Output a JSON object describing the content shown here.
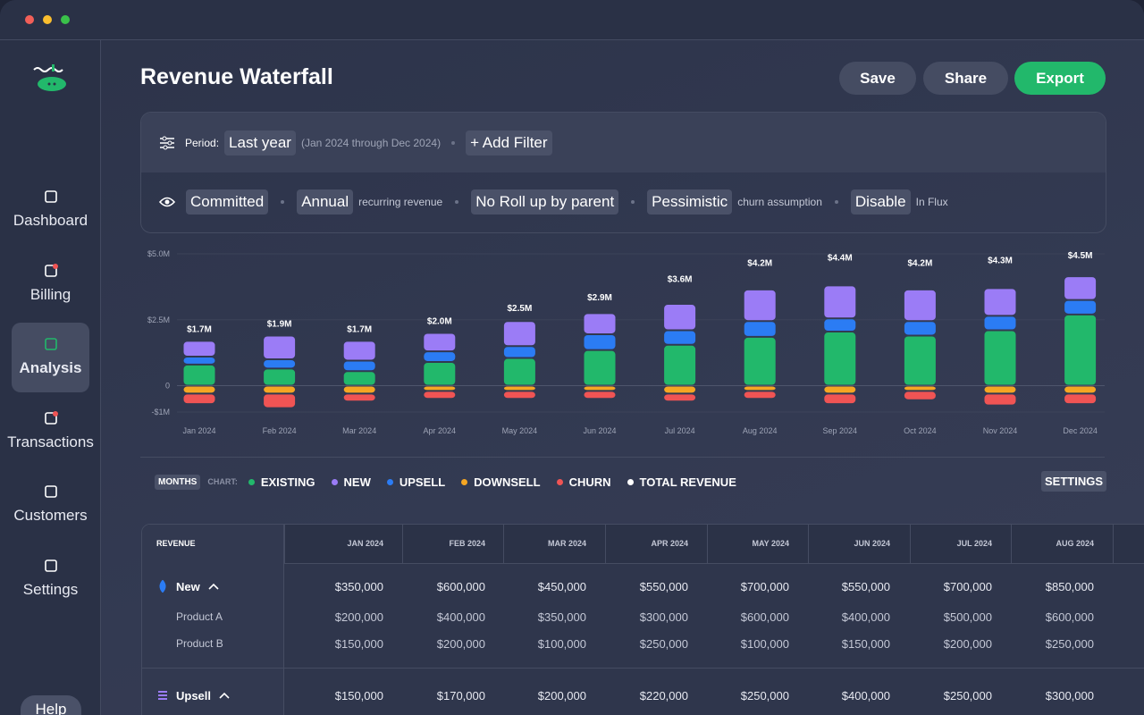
{
  "sidebar": {
    "items": [
      {
        "label": "Dashboard"
      },
      {
        "label": "Billing"
      },
      {
        "label": "Analysis"
      },
      {
        "label": "Transactions"
      },
      {
        "label": "Customers"
      },
      {
        "label": "Settings"
      }
    ],
    "help": "Help"
  },
  "header": {
    "title": "Revenue Waterfall",
    "buttons": [
      "Save",
      "Share",
      "Export"
    ]
  },
  "filters": {
    "period_label": "Period:",
    "period": "Last year",
    "period_range": "(Jan 2024 through Dec 2024)",
    "add_filter": "+ Add Filter",
    "options": [
      {
        "chip": "Committed"
      },
      {
        "chip": "Annual",
        "note": "recurring revenue"
      },
      {
        "chip": "No Roll up by parent"
      },
      {
        "chip": "Pessimistic",
        "note": "churn assumption"
      },
      {
        "chip": "Disable",
        "note": "In Flux"
      }
    ]
  },
  "chart_data": {
    "type": "bar",
    "categories": [
      "Jan 2024",
      "Feb 2024",
      "Mar 2024",
      "Apr 2024",
      "May 2024",
      "Jun 2024",
      "Jul 2024",
      "Aug 2024",
      "Sep 2024",
      "Oct 2024",
      "Nov 2024",
      "Dec 2024"
    ],
    "series": [
      {
        "name": "EXISTING",
        "color": "#22b86b",
        "values": [
          0.8,
          0.65,
          0.55,
          0.9,
          1.05,
          1.35,
          1.55,
          1.85,
          2.05,
          1.9,
          2.1,
          2.7
        ]
      },
      {
        "name": "NEW",
        "color": "#9b7cf6",
        "values": [
          0.6,
          0.9,
          0.75,
          0.7,
          0.95,
          0.8,
          1.0,
          1.2,
          1.25,
          1.2,
          1.05,
          0.9
        ]
      },
      {
        "name": "UPSELL",
        "color": "#2b7cf4",
        "values": [
          0.3,
          0.35,
          0.4,
          0.4,
          0.45,
          0.6,
          0.55,
          0.6,
          0.5,
          0.55,
          0.55,
          0.55
        ]
      },
      {
        "name": "DOWNSELL",
        "color": "#f5a623",
        "values": [
          -0.3,
          -0.3,
          -0.3,
          -0.2,
          -0.2,
          -0.2,
          -0.3,
          -0.2,
          -0.3,
          -0.2,
          -0.3,
          -0.3
        ]
      },
      {
        "name": "CHURN",
        "color": "#f05454",
        "values": [
          -0.4,
          -0.55,
          -0.3,
          -0.3,
          -0.3,
          -0.3,
          -0.3,
          -0.3,
          -0.4,
          -0.35,
          -0.45,
          -0.4
        ]
      },
      {
        "name": "TOTAL REVENUE",
        "color": "#ffffff",
        "values": [
          1.7,
          1.9,
          1.7,
          2.0,
          2.5,
          2.9,
          3.6,
          4.2,
          4.4,
          4.2,
          4.3,
          4.5
        ],
        "value_labels": [
          "$1.7M",
          "$1.9M",
          "$1.7M",
          "$2.0M",
          "$2.5M",
          "$2.9M",
          "$3.6M",
          "$4.2M",
          "$4.4M",
          "$4.2M",
          "$4.3M",
          "$4.5M"
        ]
      }
    ],
    "ylim": [
      -1,
      5
    ],
    "yticks": [
      {
        "value": 5,
        "label": "$5.0M"
      },
      {
        "value": 2.5,
        "label": "$2.5M"
      },
      0,
      {
        "value": -1,
        "label": "-$1M"
      }
    ],
    "grid": true
  },
  "chart_controls": {
    "granularity": "MONTHS",
    "chart_label": "CHART:",
    "settings": "SETTINGS"
  },
  "table": {
    "header": "REVENUE",
    "columns": [
      "JAN 2024",
      "FEB 2024",
      "MAR 2024",
      "APR 2024",
      "MAY 2024",
      "JUN 2024",
      "JUL 2024",
      "AUG 2024"
    ],
    "groups": [
      {
        "name": "New",
        "values": [
          "$350,000",
          "$600,000",
          "$450,000",
          "$550,000",
          "$700,000",
          "$550,000",
          "$700,000",
          "$850,000"
        ],
        "rows": [
          {
            "name": "Product A",
            "values": [
              "$200,000",
              "$400,000",
              "$350,000",
              "$300,000",
              "$600,000",
              "$400,000",
              "$500,000",
              "$600,000"
            ]
          },
          {
            "name": "Product B",
            "values": [
              "$150,000",
              "$200,000",
              "$100,000",
              "$250,000",
              "$100,000",
              "$150,000",
              "$200,000",
              "$250,000"
            ]
          }
        ]
      },
      {
        "name": "Upsell",
        "values": [
          "$150,000",
          "$170,000",
          "$200,000",
          "$220,000",
          "$250,000",
          "$400,000",
          "$250,000",
          "$300,000"
        ],
        "rows": []
      }
    ]
  }
}
